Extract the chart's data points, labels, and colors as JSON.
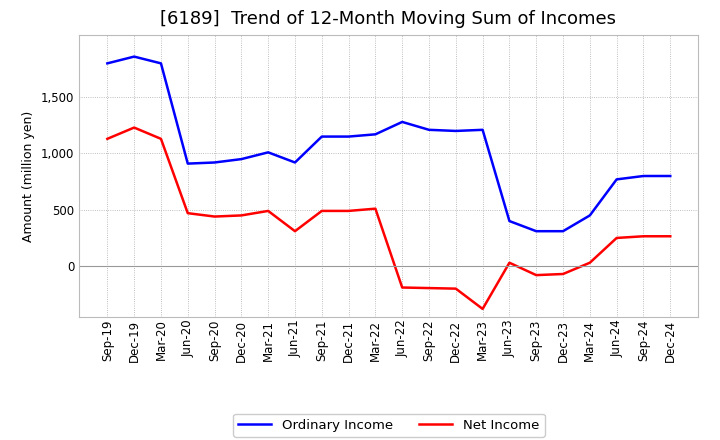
{
  "title": "[6189]  Trend of 12-Month Moving Sum of Incomes",
  "ylabel": "Amount (million yen)",
  "x_labels": [
    "Sep-19",
    "Dec-19",
    "Mar-20",
    "Jun-20",
    "Sep-20",
    "Dec-20",
    "Mar-21",
    "Jun-21",
    "Sep-21",
    "Dec-21",
    "Mar-22",
    "Jun-22",
    "Sep-22",
    "Dec-22",
    "Mar-23",
    "Jun-23",
    "Sep-23",
    "Dec-23",
    "Mar-24",
    "Jun-24",
    "Sep-24",
    "Dec-24"
  ],
  "ordinary_income": [
    1800,
    1860,
    1800,
    910,
    920,
    950,
    1010,
    920,
    1150,
    1150,
    1170,
    1280,
    1210,
    1200,
    1210,
    400,
    310,
    310,
    450,
    770,
    800,
    800
  ],
  "net_income_full": [
    1130,
    1230,
    1130,
    470,
    440,
    450,
    490,
    310,
    490,
    490,
    510,
    -190,
    -195,
    -200,
    -380,
    30,
    -80,
    -70,
    30,
    250,
    265,
    265
  ],
  "ordinary_income_color": "#0000ff",
  "net_income_color": "#ff0000",
  "background_color": "#ffffff",
  "plot_bg_color": "#ffffff",
  "grid_color": "#aaaaaa",
  "ylim_min": -450,
  "ylim_max": 2050,
  "yticks": [
    0,
    500,
    1000,
    1500
  ],
  "legend_ordinary": "Ordinary Income",
  "legend_net": "Net Income",
  "title_fontsize": 13,
  "axis_fontsize": 9,
  "tick_fontsize": 8.5,
  "line_width": 1.8
}
